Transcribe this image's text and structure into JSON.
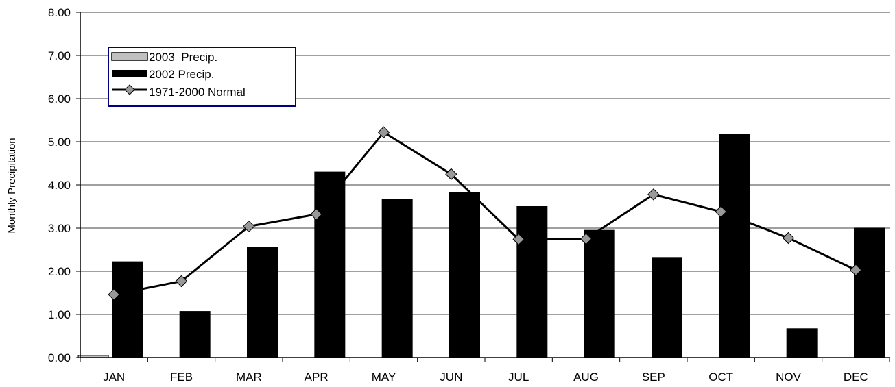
{
  "chart_data": {
    "type": "bar",
    "title": "",
    "xlabel": "",
    "ylabel": "Monthly Precipitation",
    "categories": [
      "JAN",
      "FEB",
      "MAR",
      "APR",
      "MAY",
      "JUN",
      "JUL",
      "AUG",
      "SEP",
      "OCT",
      "NOV",
      "DEC"
    ],
    "ylim": [
      0,
      8
    ],
    "yticks": [
      "0.00",
      "1.00",
      "2.00",
      "3.00",
      "4.00",
      "5.00",
      "6.00",
      "7.00",
      "8.00"
    ],
    "grid": true,
    "legend_position": "top-left",
    "series": [
      {
        "name": "2003  Precip.",
        "type": "bar",
        "color": "#c0c0c0",
        "values": [
          0.05,
          null,
          null,
          null,
          null,
          null,
          null,
          null,
          null,
          null,
          null,
          null
        ]
      },
      {
        "name": "2002 Precip.",
        "type": "bar",
        "color": "#000000",
        "values": [
          2.22,
          1.07,
          2.55,
          4.3,
          3.66,
          3.83,
          3.5,
          2.95,
          2.32,
          5.17,
          0.67,
          3.0
        ]
      },
      {
        "name": "1971-2000 Normal",
        "type": "line",
        "color": "#000000",
        "marker": "diamond",
        "marker_color": "#999999",
        "values": [
          1.46,
          1.77,
          3.04,
          3.32,
          5.22,
          4.25,
          2.74,
          2.75,
          3.78,
          3.38,
          2.77,
          2.03
        ]
      }
    ]
  }
}
